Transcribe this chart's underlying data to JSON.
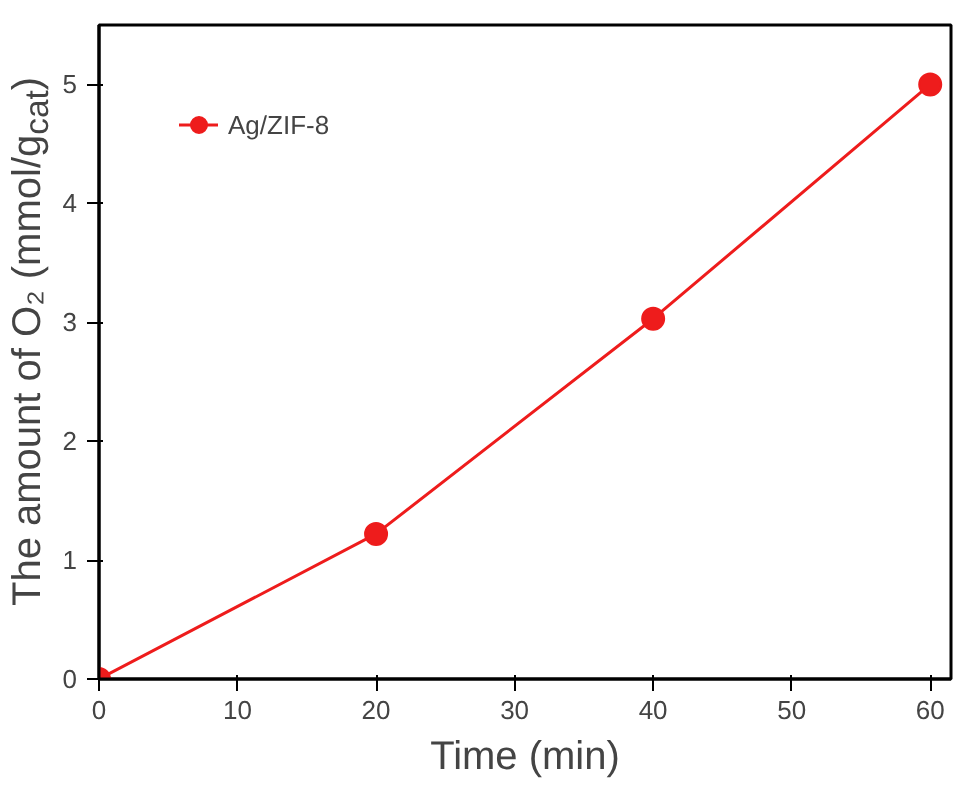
{
  "chart_data": {
    "type": "line",
    "xlabel": "Time (min)",
    "ylabel": "The amount of O₂ (mmol/g$_{cat}$)",
    "x": [
      0,
      20,
      40,
      60
    ],
    "series": [
      {
        "name": "Ag/ZIF-8",
        "color": "#ee1c1c",
        "values": [
          0,
          1.22,
          3.03,
          5.0
        ]
      }
    ],
    "xlim": [
      0,
      61.5
    ],
    "ylim": [
      0,
      5.5
    ],
    "xticks": [
      0,
      10,
      20,
      30,
      40,
      50,
      60
    ],
    "yticks": [
      0,
      1,
      2,
      3,
      4,
      5
    ],
    "grid": false,
    "legend": "top left",
    "marker": "circle",
    "line_style": "solid"
  }
}
